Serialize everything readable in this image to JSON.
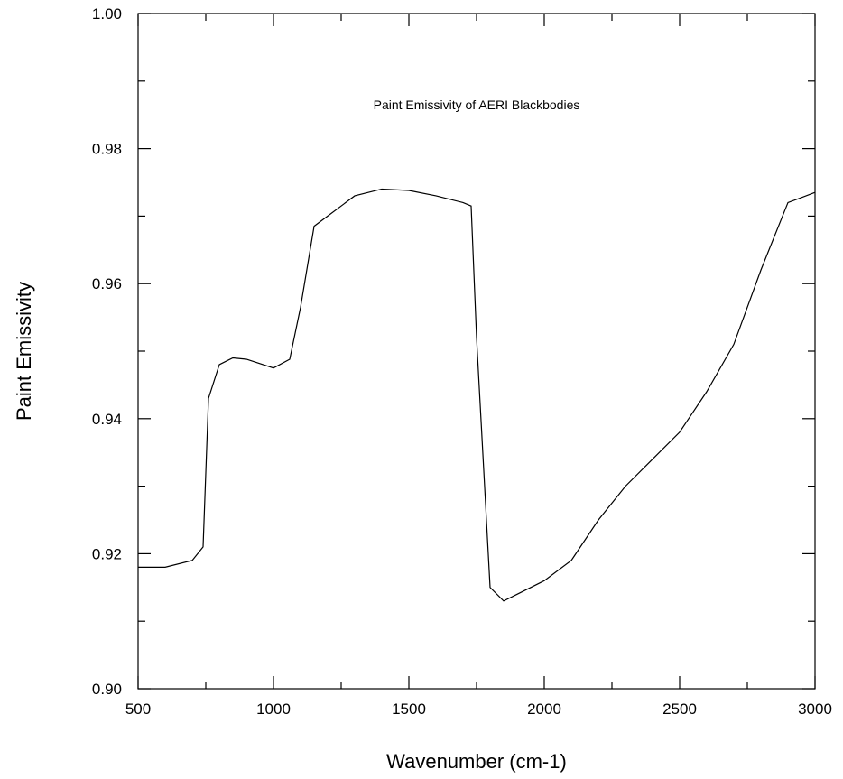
{
  "chart_data": {
    "type": "line",
    "title": "Paint Emissivity of AERI Blackbodies",
    "xlabel": "Wavenumber (cm-1)",
    "ylabel": "Paint Emissivity",
    "xlim": [
      500,
      3000
    ],
    "ylim": [
      0.9,
      1.0
    ],
    "xticks": [
      500,
      1000,
      1500,
      2000,
      2500,
      3000
    ],
    "xtick_labels": [
      "500",
      "1000",
      "1500",
      "2000",
      "2500",
      "3000"
    ],
    "yticks": [
      0.9,
      0.92,
      0.94,
      0.96,
      0.98,
      1.0
    ],
    "ytick_labels": [
      "0.90",
      "0.92",
      "0.94",
      "0.96",
      "0.98",
      "1.00"
    ],
    "grid": false,
    "series": [
      {
        "x": [
          500,
          600,
          700,
          740,
          760,
          800,
          850,
          900,
          1000,
          1060,
          1100,
          1150,
          1200,
          1300,
          1400,
          1500,
          1600,
          1700,
          1730,
          1750,
          1800,
          1850,
          1900,
          2000,
          2100,
          2200,
          2300,
          2400,
          2500,
          2600,
          2700,
          2800,
          2900,
          3000
        ],
        "y": [
          0.918,
          0.918,
          0.919,
          0.921,
          0.943,
          0.948,
          0.949,
          0.9488,
          0.9475,
          0.9488,
          0.9565,
          0.9685,
          0.97,
          0.973,
          0.974,
          0.9738,
          0.973,
          0.972,
          0.9715,
          0.952,
          0.915,
          0.913,
          0.914,
          0.916,
          0.919,
          0.925,
          0.93,
          0.934,
          0.938,
          0.944,
          0.951,
          0.962,
          0.972,
          0.9735
        ]
      }
    ]
  }
}
